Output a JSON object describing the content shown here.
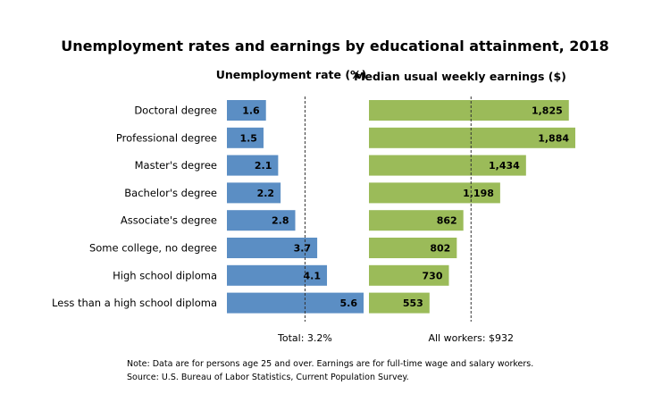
{
  "chart_data": {
    "type": "bar",
    "title": "Unemployment rates and earnings by educational attainment, 2018",
    "categories": [
      "Doctoral degree",
      "Professional degree",
      "Master's degree",
      "Bachelor's degree",
      "Associate's degree",
      "Some college, no degree",
      "High school diploma",
      "Less than a high school diploma"
    ],
    "series": [
      {
        "name": "Unemployment rate (%)",
        "values": [
          1.6,
          1.5,
          2.1,
          2.2,
          2.8,
          3.7,
          4.1,
          5.6
        ],
        "labels": [
          "1.6",
          "1.5",
          "2.1",
          "2.2",
          "2.8",
          "3.7",
          "4.1",
          "5.6"
        ],
        "color": "#5b8ec4",
        "reference": {
          "value": 3.2,
          "label": "Total: 3.2%"
        },
        "xlim": [
          0,
          5.6
        ]
      },
      {
        "name": "Median usual weekly earnings ($)",
        "values": [
          1825,
          1884,
          1434,
          1198,
          862,
          802,
          730,
          553
        ],
        "labels": [
          "1,825",
          "1,884",
          "1,434",
          "1,198",
          "862",
          "802",
          "730",
          "553"
        ],
        "color": "#9bbb59",
        "reference": {
          "value": 932,
          "label": "All workers: $932"
        },
        "xlim": [
          0,
          1884
        ]
      }
    ],
    "notes": [
      "Note: Data are for persons age 25 and over. Earnings are for full-time wage and salary workers.",
      "Source: U.S. Bureau of Labor Statistics, Current Population Survey."
    ],
    "grid": false,
    "legend": "none"
  }
}
